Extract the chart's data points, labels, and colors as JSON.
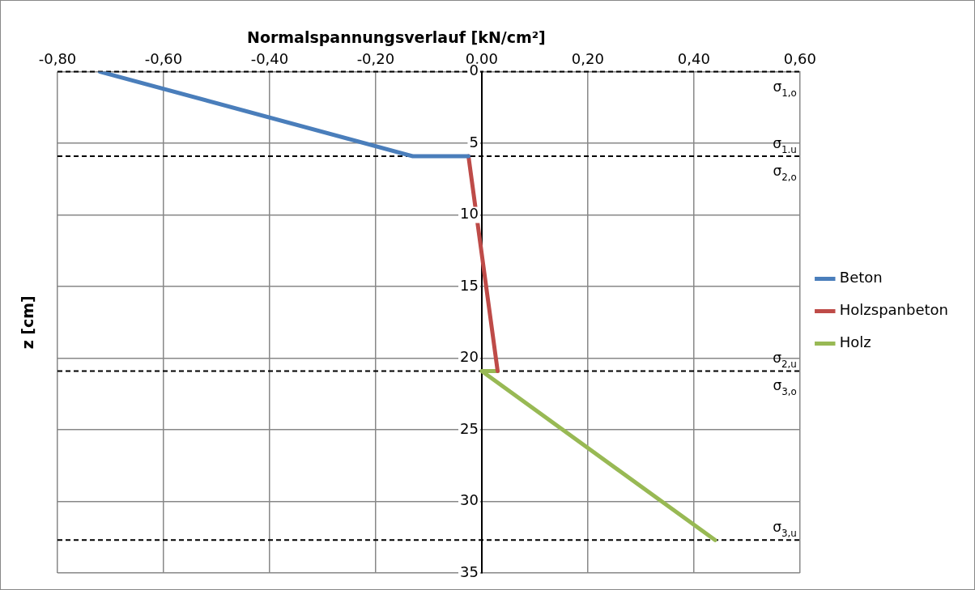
{
  "chart_data": {
    "type": "line",
    "xlabel": "Normalspannungsverlauf [kN/cm²]",
    "ylabel": "z [cm]",
    "xlim": [
      -0.8,
      0.6
    ],
    "xticks": [
      {
        "value": -0.8,
        "label": "-0,80"
      },
      {
        "value": -0.6,
        "label": "-0,60"
      },
      {
        "value": -0.4,
        "label": "-0,40"
      },
      {
        "value": -0.2,
        "label": "-0,20"
      },
      {
        "value": 0,
        "label": "0,00"
      },
      {
        "value": 0.2,
        "label": "0,20"
      },
      {
        "value": 0.4,
        "label": "0,40"
      },
      {
        "value": 0.6,
        "label": "0,60"
      }
    ],
    "ylim": [
      35,
      0
    ],
    "yticks": [
      0,
      5,
      10,
      15,
      20,
      25,
      30,
      35
    ],
    "series": [
      {
        "name": "Beton",
        "color": "#4a7ebb",
        "x": [
          -0.72,
          -0.13,
          -0.025
        ],
        "values": [
          0,
          5.9,
          5.9
        ]
      },
      {
        "name": "Holzspanbeton",
        "color": "#be4b48",
        "x": [
          -0.025,
          0.03
        ],
        "values": [
          5.9,
          20.9
        ]
      },
      {
        "name": "Holz",
        "color": "#98b954",
        "x": [
          0.03,
          0.0,
          0.44
        ],
        "values": [
          20.9,
          20.9,
          32.7
        ]
      }
    ],
    "ref_lines": [
      {
        "axis": "y",
        "value": 0,
        "line_style": "dashed",
        "color": "#000000"
      },
      {
        "axis": "y",
        "value": 5.9,
        "line_style": "dashed",
        "color": "#000000"
      },
      {
        "axis": "y",
        "value": 20.9,
        "line_style": "dashed",
        "color": "#000000"
      },
      {
        "axis": "y",
        "value": 32.7,
        "line_style": "dashed",
        "color": "#000000"
      }
    ],
    "annotations": [
      {
        "text": "σ$_{1,o}$",
        "y": 0
      },
      {
        "text": "σ$_{1.u}$",
        "y": 5.9
      },
      {
        "text": "σ$_{2,o}$",
        "y": 5.9
      },
      {
        "text": "σ$_{2,u}$",
        "y": 20.9
      },
      {
        "text": "σ$_{3,o}$",
        "y": 20.9
      },
      {
        "text": "σ$_{3,u}$",
        "y": 32.7
      }
    ],
    "grid": true,
    "legend": "right",
    "marker": "none",
    "line_style": "solid"
  }
}
